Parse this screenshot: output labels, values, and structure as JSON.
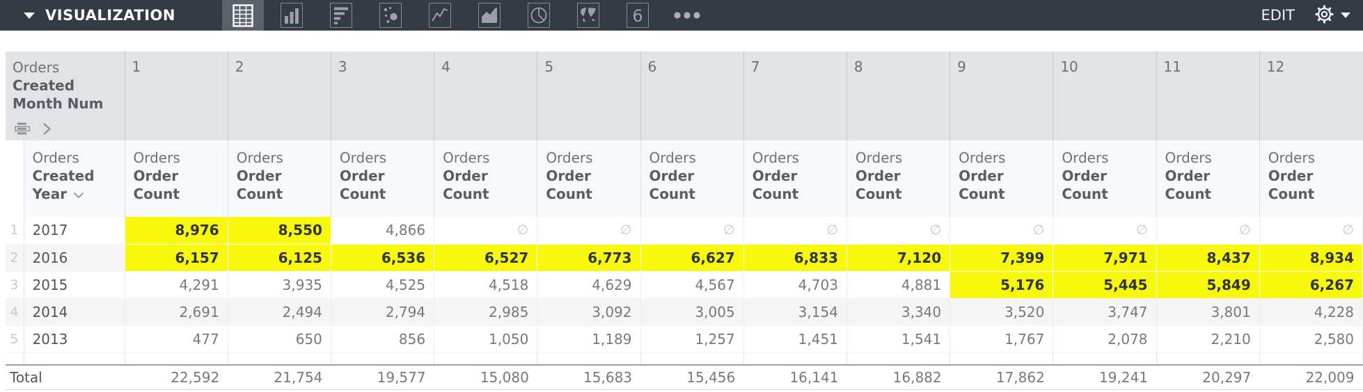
{
  "toolbar": {
    "title": "VISUALIZATION",
    "edit_label": "EDIT",
    "bg_color": "#353b45",
    "selected_bg_color": "#5a626c",
    "chart_types": [
      {
        "icon": "table-icon",
        "label": "table",
        "selected": true
      },
      {
        "icon": "column-chart-icon",
        "label": "column chart",
        "selected": false
      },
      {
        "icon": "bar-chart-icon",
        "label": "bar chart",
        "selected": false
      },
      {
        "icon": "scatter-chart-icon",
        "label": "scatter plot",
        "selected": false
      },
      {
        "icon": "line-chart-icon",
        "label": "line chart",
        "selected": false
      },
      {
        "icon": "area-chart-icon",
        "label": "area chart",
        "selected": false
      },
      {
        "icon": "pie-chart-icon",
        "label": "pie chart",
        "selected": false
      },
      {
        "icon": "map-chart-icon",
        "label": "map",
        "selected": false
      },
      {
        "icon": "single-value-icon",
        "label": "single value",
        "glyph": "6",
        "selected": false
      },
      {
        "icon": "more-options-icon",
        "label": "more",
        "selected": false
      }
    ]
  },
  "table": {
    "pivot_field": {
      "line1": "Orders",
      "line2": "Created",
      "line3": "Month Num"
    },
    "row_field": {
      "line1": "Orders",
      "line2": "Created",
      "line3": "Year"
    },
    "measure_field": {
      "line1": "Orders",
      "line2": "Order",
      "line3": "Count"
    },
    "months": [
      "1",
      "2",
      "3",
      "4",
      "5",
      "6",
      "7",
      "8",
      "9",
      "10",
      "11",
      "12"
    ],
    "null_symbol": "∅",
    "highlight_color": "#f8f80b",
    "rows": [
      {
        "num": "1",
        "year": "2017",
        "values": [
          "8,976",
          "8,550",
          "4,866",
          null,
          null,
          null,
          null,
          null,
          null,
          null,
          null,
          null
        ],
        "highlighted": [
          true,
          true,
          false,
          false,
          false,
          false,
          false,
          false,
          false,
          false,
          false,
          false
        ]
      },
      {
        "num": "2",
        "year": "2016",
        "values": [
          "6,157",
          "6,125",
          "6,536",
          "6,527",
          "6,773",
          "6,627",
          "6,833",
          "7,120",
          "7,399",
          "7,971",
          "8,437",
          "8,934"
        ],
        "highlighted": [
          true,
          true,
          true,
          true,
          true,
          true,
          true,
          true,
          true,
          true,
          true,
          true
        ]
      },
      {
        "num": "3",
        "year": "2015",
        "values": [
          "4,291",
          "3,935",
          "4,525",
          "4,518",
          "4,629",
          "4,567",
          "4,703",
          "4,881",
          "5,176",
          "5,445",
          "5,849",
          "6,267"
        ],
        "highlighted": [
          false,
          false,
          false,
          false,
          false,
          false,
          false,
          false,
          true,
          true,
          true,
          true
        ]
      },
      {
        "num": "4",
        "year": "2014",
        "values": [
          "2,691",
          "2,494",
          "2,794",
          "2,985",
          "3,092",
          "3,005",
          "3,154",
          "3,340",
          "3,520",
          "3,747",
          "3,801",
          "4,228"
        ],
        "highlighted": [
          false,
          false,
          false,
          false,
          false,
          false,
          false,
          false,
          false,
          false,
          false,
          false
        ]
      },
      {
        "num": "5",
        "year": "2013",
        "values": [
          "477",
          "650",
          "856",
          "1,050",
          "1,189",
          "1,257",
          "1,451",
          "1,541",
          "1,767",
          "2,078",
          "2,210",
          "2,580"
        ],
        "highlighted": [
          false,
          false,
          false,
          false,
          false,
          false,
          false,
          false,
          false,
          false,
          false,
          false
        ]
      }
    ],
    "total": {
      "label": "Total",
      "values": [
        "22,592",
        "21,754",
        "19,577",
        "15,080",
        "15,683",
        "15,456",
        "16,141",
        "16,882",
        "17,862",
        "19,241",
        "20,297",
        "22,009"
      ]
    }
  }
}
